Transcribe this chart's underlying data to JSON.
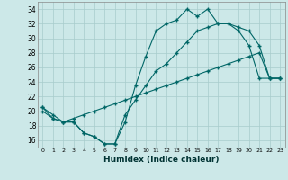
{
  "xlabel": "Humidex (Indice chaleur)",
  "bg_color": "#cce8e8",
  "grid_color": "#a8cccc",
  "line_color": "#006666",
  "xlim": [
    -0.5,
    23.5
  ],
  "ylim": [
    15.0,
    35.0
  ],
  "yticks": [
    16,
    18,
    20,
    22,
    24,
    26,
    28,
    30,
    32,
    34
  ],
  "xticks": [
    0,
    1,
    2,
    3,
    4,
    5,
    6,
    7,
    8,
    9,
    10,
    11,
    12,
    13,
    14,
    15,
    16,
    17,
    18,
    19,
    20,
    21,
    22,
    23
  ],
  "series1_x": [
    0,
    1,
    2,
    3,
    4,
    5,
    6,
    7,
    8,
    9,
    10,
    11,
    12,
    13,
    14,
    15,
    16,
    17,
    18,
    19,
    20,
    21,
    22,
    23
  ],
  "series1_y": [
    20.5,
    19.5,
    18.5,
    18.5,
    17.0,
    16.5,
    15.5,
    15.5,
    18.5,
    23.5,
    27.5,
    31.0,
    32.0,
    32.5,
    34.0,
    33.0,
    34.0,
    32.0,
    32.0,
    31.0,
    29.0,
    24.5,
    24.5,
    24.5
  ],
  "series2_x": [
    0,
    1,
    2,
    3,
    4,
    5,
    6,
    7,
    8,
    9,
    10,
    11,
    12,
    13,
    14,
    15,
    16,
    17,
    18,
    19,
    20,
    21,
    22,
    23
  ],
  "series2_y": [
    20.5,
    19.0,
    18.5,
    18.5,
    17.0,
    16.5,
    15.5,
    15.5,
    19.5,
    21.5,
    23.5,
    25.5,
    26.5,
    28.0,
    29.5,
    31.0,
    31.5,
    32.0,
    32.0,
    31.5,
    31.0,
    29.0,
    24.5,
    24.5
  ],
  "series3_x": [
    0,
    1,
    2,
    3,
    4,
    5,
    6,
    7,
    8,
    9,
    10,
    11,
    12,
    13,
    14,
    15,
    16,
    17,
    18,
    19,
    20,
    21,
    22,
    23
  ],
  "series3_y": [
    20.0,
    19.0,
    18.5,
    19.0,
    19.5,
    20.0,
    20.5,
    21.0,
    21.5,
    22.0,
    22.5,
    23.0,
    23.5,
    24.0,
    24.5,
    25.0,
    25.5,
    26.0,
    26.5,
    27.0,
    27.5,
    28.0,
    24.5,
    24.5
  ]
}
